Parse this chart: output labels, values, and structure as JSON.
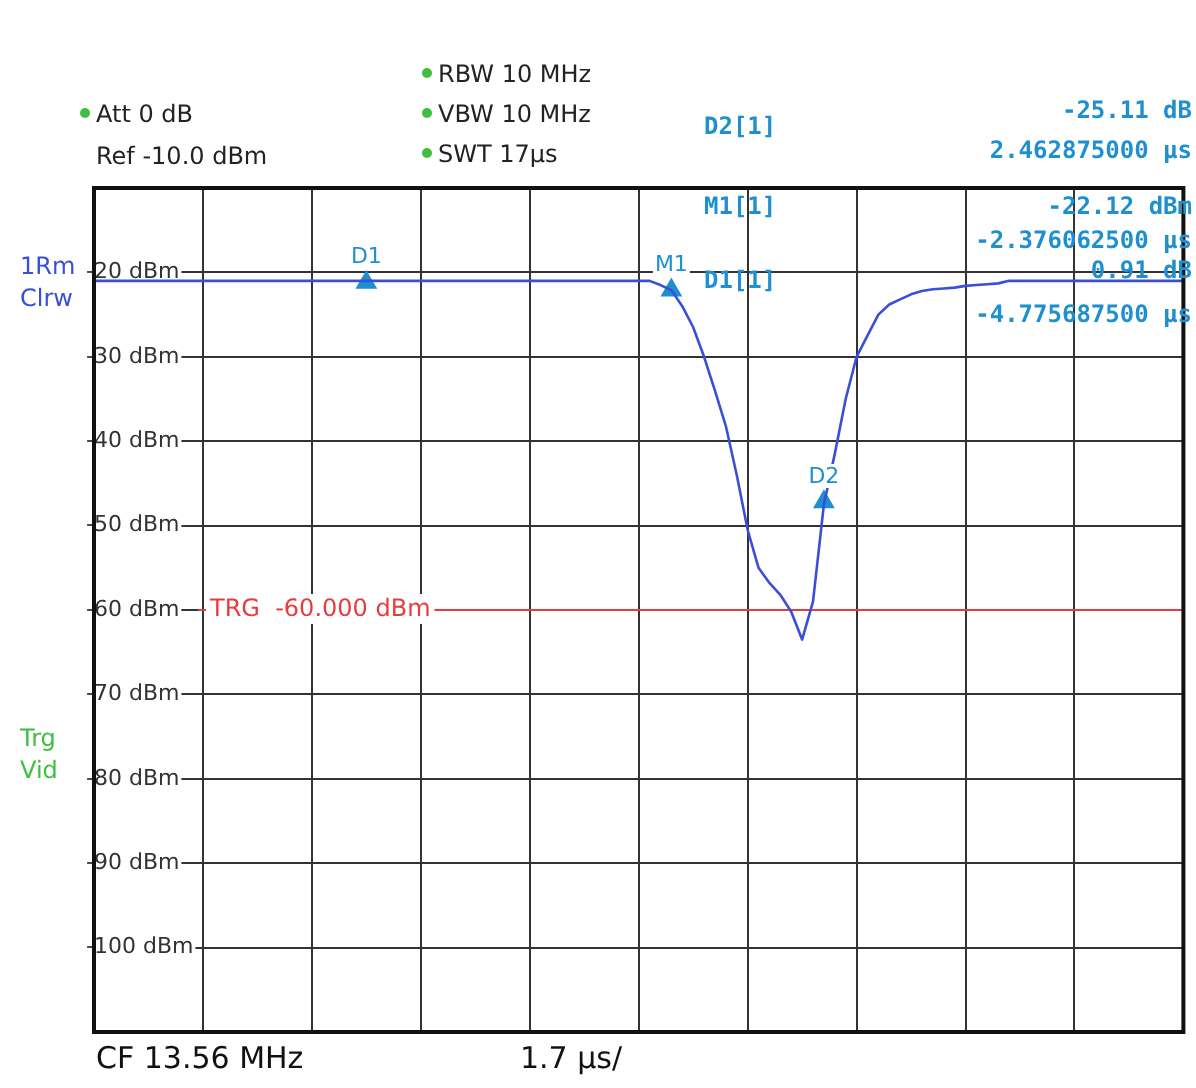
{
  "chart_data": {
    "type": "line",
    "categories": [
      null,
      null,
      null,
      null,
      null,
      null,
      null,
      null,
      null,
      null,
      null,
      null,
      null,
      null,
      null,
      null,
      null,
      null,
      null,
      null,
      null,
      null,
      null,
      null,
      null,
      null,
      null,
      null,
      null,
      null,
      null,
      null,
      null,
      null,
      null,
      null,
      null,
      null,
      null,
      null,
      null,
      null,
      null,
      null,
      null,
      null,
      null,
      null,
      null,
      null,
      null,
      null,
      null,
      null,
      null,
      null,
      null,
      null,
      null,
      null,
      null,
      null,
      null,
      null,
      null,
      null,
      null,
      null,
      null,
      null,
      null,
      null,
      null,
      null,
      null,
      null,
      null,
      null,
      null,
      null,
      null,
      null,
      null,
      null,
      null,
      null,
      null,
      null,
      null,
      null,
      null,
      null,
      null,
      null,
      null,
      null,
      null,
      null,
      null,
      null,
      null
    ],
    "series": [
      {
        "type": "line",
        "color": "#3a4fd8",
        "marker": "none",
        "values": [
          -21,
          -21,
          -21,
          -21,
          -21,
          -21,
          -21,
          -21,
          -21,
          -21,
          -21,
          -21,
          -21,
          -21,
          -21,
          -21,
          -21,
          -21,
          -21,
          -21,
          -21,
          -21,
          -21,
          -21,
          -21,
          -21,
          -21,
          -21,
          -21,
          -21,
          -21,
          -21,
          -21,
          -21,
          -21,
          -21,
          -21,
          -21,
          -21,
          -21,
          -21,
          -21,
          -21,
          -21,
          -21,
          -21,
          -21,
          -21,
          -21,
          -21,
          -21,
          -21,
          -21.5,
          -22.1,
          -24,
          -26.5,
          -30,
          -34,
          -38.2,
          -44,
          -50.5,
          -55,
          -56.8,
          -58.2,
          -60.2,
          -63.5,
          -59,
          -47.5,
          -41.5,
          -35,
          -30,
          -27.5,
          -25,
          -23.8,
          -23.2,
          -22.6,
          -22.2,
          -22,
          -21.9,
          -21.8,
          -21.6,
          -21.5,
          -21.4,
          -21.3,
          -21,
          -21,
          -21,
          -21,
          -21,
          -21,
          -21,
          -21,
          -21,
          -21,
          -21,
          -21,
          -21,
          -21,
          -21,
          -21,
          -21
        ]
      },
      {
        "type": "scatter",
        "color": "#1e8fd0",
        "marker": "triangle",
        "values": [
          null,
          null,
          null,
          null,
          null,
          null,
          null,
          null,
          null,
          null,
          null,
          null,
          null,
          null,
          null,
          null,
          null,
          null,
          null,
          null,
          null,
          null,
          null,
          null,
          null,
          -21.2,
          null,
          null,
          null,
          null,
          null,
          null,
          null,
          null,
          null,
          null,
          null,
          null,
          null,
          null,
          null,
          null,
          null,
          null,
          null,
          null,
          null,
          null,
          null,
          null,
          null,
          null,
          null,
          -22.1,
          null,
          null,
          null,
          null,
          null,
          null,
          null,
          null,
          null,
          null,
          null,
          null,
          null,
          -47.2,
          null,
          null,
          null,
          null,
          null,
          null,
          null,
          null,
          null,
          null,
          null,
          null,
          null,
          null,
          null,
          null,
          null,
          null,
          null,
          null,
          null,
          null,
          null,
          null,
          null,
          null,
          null,
          null,
          null,
          null,
          null,
          null,
          null
        ]
      }
    ],
    "ylim": [
      -110,
      -10
    ],
    "yticks": [
      {
        "value": -10,
        "label": null
      },
      {
        "value": -20,
        "label": "-20 dBm"
      },
      {
        "value": -30,
        "label": "-30 dBm"
      },
      {
        "value": -40,
        "label": "-40 dBm"
      },
      {
        "value": -50,
        "label": "-50 dBm"
      },
      {
        "value": -60,
        "label": "-60 dBm"
      },
      {
        "value": -70,
        "label": "-70 dBm"
      },
      {
        "value": -80,
        "label": "-80 dBm"
      },
      {
        "value": -90,
        "label": "-90 dBm"
      },
      {
        "value": -100,
        "label": "-100 dBm"
      },
      {
        "value": -110,
        "label": null
      }
    ],
    "tick_labels": "y",
    "grid": true,
    "ref_lines": [
      {
        "axis": "y",
        "value": -60,
        "label": "TRG  -60.000 dBm",
        "color": "#e83c3c"
      }
    ],
    "annotations": [
      "D1",
      "M1",
      "D2",
      "Att  0 dB",
      "Ref  -10.0 dBm",
      "RBW 10 MHz",
      "VBW 10 MHz",
      "SWT 17µs",
      "D2[1]",
      "-25.11 dB",
      "2.462875000 µs",
      "M1[1]",
      "-22.12 dBm",
      "-2.376062500 µs",
      "D1[1]",
      "0.91 dB",
      "-4.775687500 µs",
      "1Rm",
      "Clrw",
      "Trg",
      "Vid",
      "CF 13.56 MHz",
      "1.7 µs/"
    ]
  }
}
